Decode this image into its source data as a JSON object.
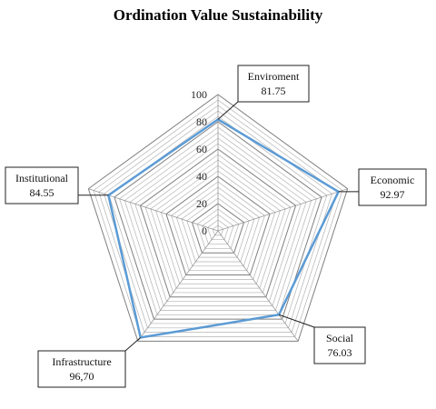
{
  "chart_data": {
    "type": "radar",
    "title": "Ordination Value Sustainability",
    "axes": [
      "Enviroment",
      "Economic",
      "Social",
      "Infrastructure",
      "Institutional"
    ],
    "value_labels": [
      "81.75",
      "92.97",
      "76.03",
      "96,70",
      "84.55"
    ],
    "values": [
      81.75,
      92.97,
      76.03,
      96.7,
      84.55
    ],
    "rlim": [
      0,
      100
    ],
    "tick_labels": [
      "0",
      "20",
      "40",
      "60",
      "80",
      "100"
    ],
    "grid": true,
    "series_color": "#5b9bd5"
  }
}
